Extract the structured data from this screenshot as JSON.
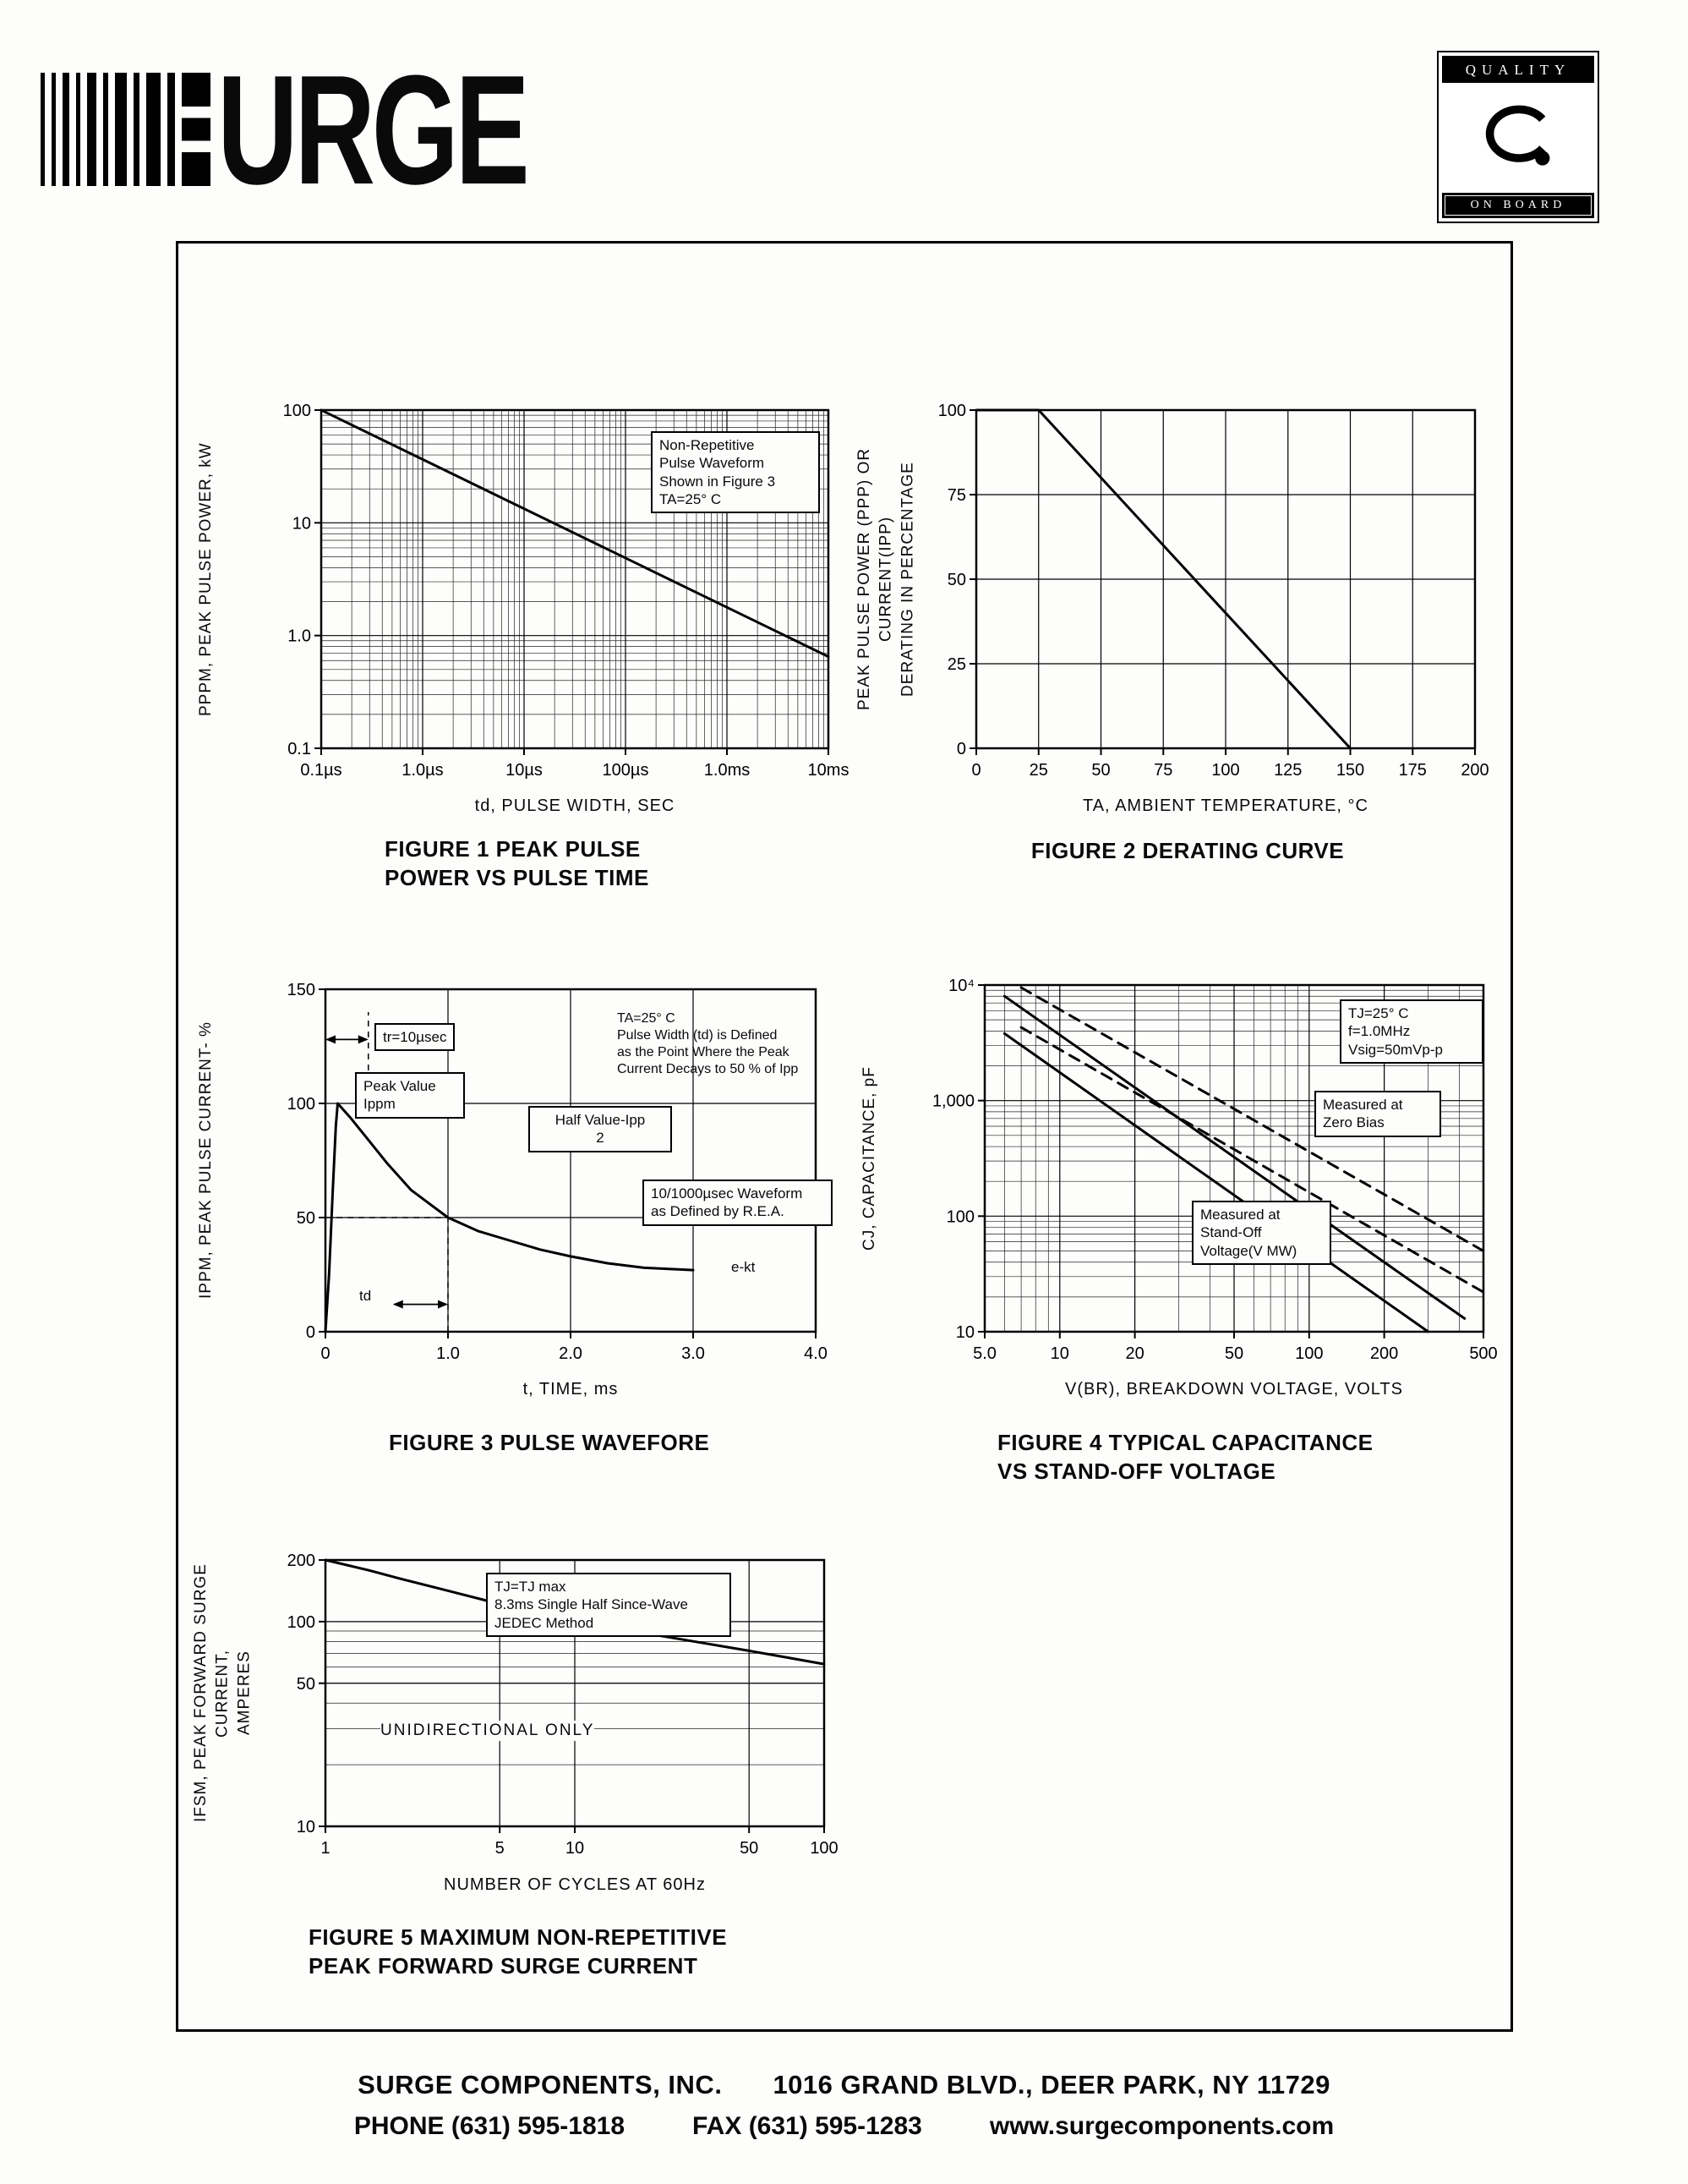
{
  "page": {
    "logo_text": "URGE",
    "quality_badge": {
      "top": "QUALITY",
      "bottom": "ON BOARD"
    },
    "footer": {
      "company": "SURGE COMPONENTS, INC.",
      "address": "1016 GRAND BLVD., DEER PARK, NY  11729",
      "phone": "PHONE (631) 595-1818",
      "fax": "FAX (631) 595-1283",
      "website": "www.surgecomponents.com"
    }
  },
  "chart_data": [
    {
      "id": "figure-1",
      "type": "line",
      "title": "FIGURE 1 PEAK PULSE\nPOWER VS PULSE TIME",
      "xlabel": "td, PULSE WIDTH, SEC",
      "ylabel": "PPPM, PEAK PULSE POWER, kW",
      "x": {
        "scale": "log",
        "min": 1e-07,
        "max": 0.01,
        "ticks": [
          {
            "v": 1e-07,
            "t": "0.1µs"
          },
          {
            "v": 1e-06,
            "t": "1.0µs"
          },
          {
            "v": 1e-05,
            "t": "10µs"
          },
          {
            "v": 0.0001,
            "t": "100µs"
          },
          {
            "v": 0.001,
            "t": "1.0ms"
          },
          {
            "v": 0.01,
            "t": "10ms"
          }
        ]
      },
      "y": {
        "scale": "log",
        "min": 0.1,
        "max": 100,
        "ticks": [
          {
            "v": 0.1,
            "t": "0.1"
          },
          {
            "v": 1,
            "t": "1.0"
          },
          {
            "v": 10,
            "t": "10"
          },
          {
            "v": 100,
            "t": "100"
          }
        ]
      },
      "grid": {
        "x_minor": true,
        "y_minor": true,
        "x_major": true,
        "y_major": true
      },
      "series": [
        {
          "name": "peak-pulse-power",
          "dash": false,
          "points": [
            [
              1e-07,
              100
            ],
            [
              0.01,
              0.65
            ]
          ]
        }
      ],
      "annotations": {
        "note": "Non-Repetitive\nPulse Waveform\nShown in Figure 3\nTA=25° C"
      }
    },
    {
      "id": "figure-2",
      "type": "line",
      "title": "FIGURE 2 DERATING CURVE",
      "xlabel": "TA, AMBIENT  TEMPERATURE, °C",
      "ylabel": "PEAK PULSE POWER (PPP) OR CURRENT(IPP)\nDERATING IN PERCENTAGE",
      "x": {
        "scale": "linear",
        "min": 0,
        "max": 200,
        "ticks": [
          {
            "v": 0,
            "t": "0"
          },
          {
            "v": 25,
            "t": "25"
          },
          {
            "v": 50,
            "t": "50"
          },
          {
            "v": 75,
            "t": "75"
          },
          {
            "v": 100,
            "t": "100"
          },
          {
            "v": 125,
            "t": "125"
          },
          {
            "v": 150,
            "t": "150"
          },
          {
            "v": 175,
            "t": "175"
          },
          {
            "v": 200,
            "t": "200"
          }
        ]
      },
      "y": {
        "scale": "linear",
        "min": 0,
        "max": 100,
        "ticks": [
          {
            "v": 0,
            "t": "0"
          },
          {
            "v": 25,
            "t": "25"
          },
          {
            "v": 50,
            "t": "50"
          },
          {
            "v": 75,
            "t": "75"
          },
          {
            "v": 100,
            "t": "100"
          }
        ]
      },
      "grid": {
        "x_major": true,
        "y_major": true
      },
      "series": [
        {
          "name": "derating",
          "dash": false,
          "points": [
            [
              0,
              100
            ],
            [
              25,
              100
            ],
            [
              150,
              0
            ]
          ]
        }
      ],
      "annotations": {}
    },
    {
      "id": "figure-3",
      "type": "line",
      "title": "FIGURE 3 PULSE WAVEFORE",
      "xlabel": "t, TIME, ms",
      "ylabel": "IPPM, PEAK PULSE CURRENT- %",
      "x": {
        "scale": "linear",
        "min": 0,
        "max": 4,
        "ticks": [
          {
            "v": 0,
            "t": "0"
          },
          {
            "v": 1,
            "t": "1.0"
          },
          {
            "v": 2,
            "t": "2.0"
          },
          {
            "v": 3,
            "t": "3.0"
          },
          {
            "v": 4,
            "t": "4.0"
          }
        ]
      },
      "y": {
        "scale": "linear",
        "min": 0,
        "max": 150,
        "ticks": [
          {
            "v": 0,
            "t": "0"
          },
          {
            "v": 50,
            "t": "50"
          },
          {
            "v": 100,
            "t": "100"
          },
          {
            "v": 150,
            "t": "150"
          }
        ]
      },
      "grid": {
        "x_major": true,
        "y_major": true
      },
      "series": [
        {
          "name": "pulse-waveform",
          "dash": false,
          "points": [
            [
              0,
              0
            ],
            [
              0.03,
              25
            ],
            [
              0.06,
              62
            ],
            [
              0.085,
              90
            ],
            [
              0.1,
              100
            ],
            [
              0.2,
              94
            ],
            [
              0.35,
              84
            ],
            [
              0.5,
              74
            ],
            [
              0.7,
              62
            ],
            [
              0.85,
              56
            ],
            [
              1.0,
              50
            ],
            [
              1.25,
              44
            ],
            [
              1.5,
              40
            ],
            [
              1.75,
              36
            ],
            [
              2.0,
              33
            ],
            [
              2.3,
              30
            ],
            [
              2.6,
              28
            ],
            [
              3.0,
              27
            ]
          ]
        }
      ],
      "marks": [
        {
          "type": "vline",
          "x": 0.35,
          "y1": 100,
          "y2": 140,
          "dash": true
        },
        {
          "type": "darrow",
          "y": 128,
          "x1": 0,
          "x2": 0.35
        },
        {
          "type": "hline",
          "y": 50,
          "x1": 0,
          "x2": 1.0,
          "dash": true
        },
        {
          "type": "vline",
          "x": 1.0,
          "y1": 0,
          "y2": 50,
          "dash": true
        },
        {
          "type": "darrow",
          "y": 12,
          "x1": 0.55,
          "x2": 1.0
        }
      ],
      "annotations": {
        "rise_time": "tr=10µsec",
        "peak": "Peak Value\nIppm",
        "half": "Half Value-Ipp\n2",
        "definition": "TA=25° C\nPulse Width (td) is Defined\nas the Point Where the Peak\nCurrent Decays to 50 % of Ipp",
        "waveform": "10/1000µsec Waveform\nas Defined by R.E.A.",
        "decay": "e-kt",
        "pulse_width": "td"
      }
    },
    {
      "id": "figure-4",
      "type": "line",
      "title": "FIGURE 4 TYPICAL CAPACITANCE\nVS STAND-OFF VOLTAGE",
      "xlabel": "V(BR), BREAKDOWN VOLTAGE, VOLTS",
      "ylabel": "CJ, CAPACITANCE, pF",
      "x": {
        "scale": "log",
        "min": 5,
        "max": 500,
        "ticks": [
          {
            "v": 5,
            "t": "5.0"
          },
          {
            "v": 10,
            "t": "10"
          },
          {
            "v": 20,
            "t": "20"
          },
          {
            "v": 50,
            "t": "50"
          },
          {
            "v": 100,
            "t": "100"
          },
          {
            "v": 200,
            "t": "200"
          },
          {
            "v": 500,
            "t": "500"
          }
        ]
      },
      "y": {
        "scale": "log",
        "min": 10,
        "max": 10000,
        "ticks": [
          {
            "v": 10,
            "t": "10"
          },
          {
            "v": 100,
            "t": "100"
          },
          {
            "v": 1000,
            "t": "1,000"
          },
          {
            "v": 10000,
            "t": "10⁴"
          }
        ]
      },
      "grid": {
        "x_minor": true,
        "y_minor": true,
        "x_major": true,
        "y_major": true
      },
      "series": [
        {
          "name": "measured-zero-bias-upper",
          "dash": true,
          "points": [
            [
              7,
              9500
            ],
            [
              500,
              50
            ]
          ]
        },
        {
          "name": "measured-zero-bias-lower",
          "dash": true,
          "points": [
            [
              7,
              4300
            ],
            [
              500,
              22
            ]
          ]
        },
        {
          "name": "measured-standoff-upper",
          "dash": false,
          "points": [
            [
              6,
              8000
            ],
            [
              420,
              13
            ]
          ]
        },
        {
          "name": "measured-standoff-lower",
          "dash": false,
          "points": [
            [
              6,
              3800
            ],
            [
              300,
              10
            ]
          ]
        }
      ],
      "annotations": {
        "conditions": "TJ=25° C\nf=1.0MHz\nVsig=50mVp-p",
        "zero_bias": "Measured at\nZero Bias",
        "standoff": "Measured at\nStand-Off\nVoltage(V MW)"
      }
    },
    {
      "id": "figure-5",
      "type": "line",
      "title": "FIGURE 5 MAXIMUM NON-REPETITIVE\nPEAK FORWARD SURGE CURRENT",
      "xlabel": "NUMBER  OF  CYCLES  AT  60Hz",
      "ylabel": "IFSM, PEAK FORWARD SURGE CURRENT,\nAMPERES",
      "x": {
        "scale": "log",
        "min": 1,
        "max": 100,
        "ticks": [
          {
            "v": 1,
            "t": "1"
          },
          {
            "v": 5,
            "t": "5"
          },
          {
            "v": 10,
            "t": "10"
          },
          {
            "v": 50,
            "t": "50"
          },
          {
            "v": 100,
            "t": "100"
          }
        ]
      },
      "y": {
        "scale": "log",
        "min": 10,
        "max": 200,
        "ticks": [
          {
            "v": 10,
            "t": "10"
          },
          {
            "v": 50,
            "t": "50"
          },
          {
            "v": 100,
            "t": "100"
          },
          {
            "v": 200,
            "t": "200"
          }
        ]
      },
      "grid": {
        "y_minor": true,
        "x_major": true,
        "y_major": true
      },
      "series": [
        {
          "name": "surge-current",
          "dash": false,
          "points": [
            [
              1,
              200
            ],
            [
              1.5,
              178
            ],
            [
              2,
              162
            ],
            [
              3,
              143
            ],
            [
              5,
              122
            ],
            [
              7,
              112
            ],
            [
              10,
              102
            ],
            [
              15,
              93
            ],
            [
              20,
              87
            ],
            [
              30,
              80
            ],
            [
              50,
              72
            ],
            [
              70,
              67
            ],
            [
              100,
              62
            ]
          ]
        }
      ],
      "annotations": {
        "conditions": "TJ=TJ max\n8.3ms Single Half Since-Wave\nJEDEC Method",
        "mode": "UNIDIRECTIONAL ONLY"
      }
    }
  ]
}
